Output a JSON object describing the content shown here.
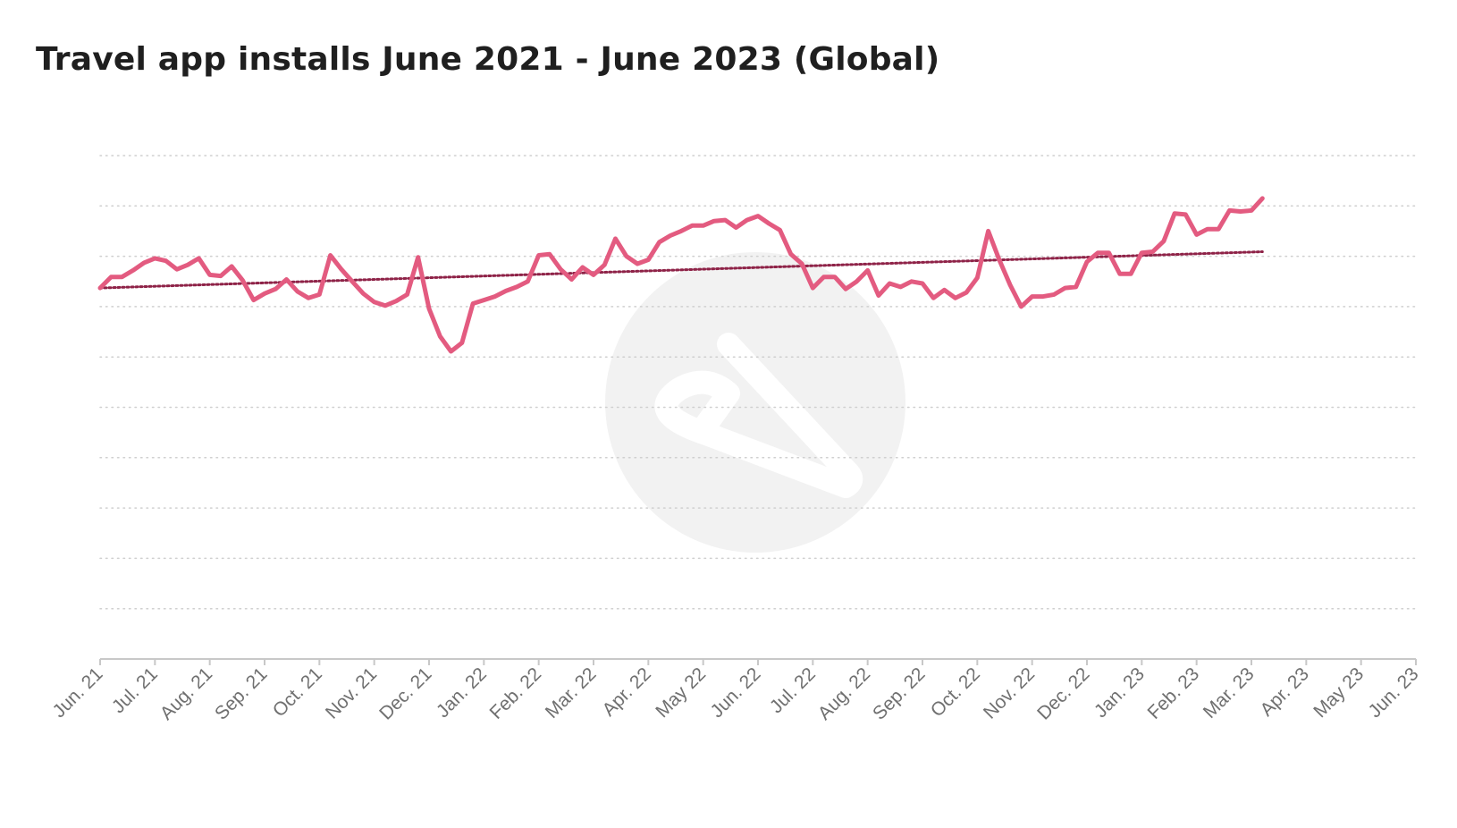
{
  "title": "Travel app installs June 2021 - June 2023 (Global)",
  "colors": {
    "series": "#e35b80",
    "trendline": "#8e2247",
    "grid": "#cfcfcf",
    "axis": "#c8c8c8",
    "tick_label": "#707070",
    "watermark": "#f2f2f2"
  },
  "watermark_icon": "logo-watermark-icon",
  "chart_data": {
    "type": "line",
    "title": "Travel app installs June 2021 - June 2023 (Global)",
    "xlabel": "",
    "ylabel": "",
    "y_tick_labels_shown": false,
    "ylim": [
      0,
      10
    ],
    "grid": true,
    "x_tick_labels": [
      "Jun. 21",
      "Jul. 21",
      "Aug. 21",
      "Sep. 21",
      "Oct. 21",
      "Nov. 21",
      "Dec. 21",
      "Jan. 22",
      "Feb. 22",
      "Mar. 22",
      "Apr. 22",
      "May 22",
      "Jun. 22",
      "Jul. 22",
      "Aug. 22",
      "Sep. 22",
      "Oct. 22",
      "Nov. 22",
      "Dec. 22",
      "Jan. 23",
      "Feb. 23",
      "Mar. 23",
      "Apr. 23",
      "May 23",
      "Jun. 23"
    ],
    "x_unit": "month index (0 = Jun. 21, 24 = Jun. 23)",
    "series": [
      {
        "values": [
          [
            0,
            7.37
          ],
          [
            0.2,
            7.59
          ],
          [
            0.4,
            7.59
          ],
          [
            0.6,
            7.72
          ],
          [
            0.8,
            7.87
          ],
          [
            1.0,
            7.96
          ],
          [
            1.2,
            7.91
          ],
          [
            1.4,
            7.74
          ],
          [
            1.6,
            7.83
          ],
          [
            1.8,
            7.96
          ],
          [
            2.0,
            7.63
          ],
          [
            2.2,
            7.61
          ],
          [
            2.4,
            7.8
          ],
          [
            2.6,
            7.52
          ],
          [
            2.8,
            7.13
          ],
          [
            3.0,
            7.26
          ],
          [
            3.2,
            7.35
          ],
          [
            3.4,
            7.54
          ],
          [
            3.6,
            7.3
          ],
          [
            3.8,
            7.17
          ],
          [
            4.0,
            7.24
          ],
          [
            4.2,
            8.02
          ],
          [
            4.4,
            7.74
          ],
          [
            4.6,
            7.5
          ],
          [
            4.8,
            7.26
          ],
          [
            5.0,
            7.09
          ],
          [
            5.2,
            7.02
          ],
          [
            5.4,
            7.11
          ],
          [
            5.6,
            7.24
          ],
          [
            5.8,
            7.98
          ],
          [
            6.0,
            6.96
          ],
          [
            6.2,
            6.41
          ],
          [
            6.4,
            6.11
          ],
          [
            6.6,
            6.28
          ],
          [
            6.8,
            7.06
          ],
          [
            7.0,
            7.13
          ],
          [
            7.2,
            7.2
          ],
          [
            7.4,
            7.31
          ],
          [
            7.6,
            7.39
          ],
          [
            7.8,
            7.5
          ],
          [
            8.0,
            8.02
          ],
          [
            8.2,
            8.04
          ],
          [
            8.4,
            7.74
          ],
          [
            8.6,
            7.54
          ],
          [
            8.8,
            7.78
          ],
          [
            9.0,
            7.63
          ],
          [
            9.2,
            7.83
          ],
          [
            9.4,
            8.35
          ],
          [
            9.6,
            8.0
          ],
          [
            9.8,
            7.85
          ],
          [
            10.0,
            7.93
          ],
          [
            10.2,
            8.28
          ],
          [
            10.4,
            8.41
          ],
          [
            10.6,
            8.5
          ],
          [
            10.8,
            8.61
          ],
          [
            11.0,
            8.61
          ],
          [
            11.2,
            8.7
          ],
          [
            11.4,
            8.72
          ],
          [
            11.6,
            8.57
          ],
          [
            11.8,
            8.72
          ],
          [
            12.0,
            8.8
          ],
          [
            12.2,
            8.65
          ],
          [
            12.4,
            8.52
          ],
          [
            12.6,
            8.04
          ],
          [
            12.8,
            7.85
          ],
          [
            13.0,
            7.37
          ],
          [
            13.2,
            7.59
          ],
          [
            13.4,
            7.59
          ],
          [
            13.6,
            7.35
          ],
          [
            13.8,
            7.5
          ],
          [
            14.0,
            7.72
          ],
          [
            14.2,
            7.22
          ],
          [
            14.4,
            7.46
          ],
          [
            14.6,
            7.39
          ],
          [
            14.8,
            7.5
          ],
          [
            15.0,
            7.46
          ],
          [
            15.2,
            7.17
          ],
          [
            15.4,
            7.33
          ],
          [
            15.6,
            7.17
          ],
          [
            15.8,
            7.28
          ],
          [
            16.0,
            7.57
          ],
          [
            16.2,
            8.5
          ],
          [
            16.4,
            7.93
          ],
          [
            16.6,
            7.43
          ],
          [
            16.8,
            7.0
          ],
          [
            17.0,
            7.2
          ],
          [
            17.2,
            7.2
          ],
          [
            17.4,
            7.24
          ],
          [
            17.6,
            7.37
          ],
          [
            17.8,
            7.39
          ],
          [
            18.0,
            7.89
          ],
          [
            18.2,
            8.07
          ],
          [
            18.4,
            8.07
          ],
          [
            18.6,
            7.65
          ],
          [
            18.8,
            7.65
          ],
          [
            19.0,
            8.07
          ],
          [
            19.2,
            8.09
          ],
          [
            19.4,
            8.3
          ],
          [
            19.6,
            8.85
          ],
          [
            19.8,
            8.83
          ],
          [
            20.0,
            8.43
          ],
          [
            20.2,
            8.54
          ],
          [
            20.4,
            8.54
          ],
          [
            20.6,
            8.91
          ],
          [
            20.8,
            8.89
          ],
          [
            21.0,
            8.91
          ],
          [
            21.2,
            9.15
          ]
        ]
      }
    ],
    "trendline": {
      "style": "dotted",
      "values": [
        [
          0,
          7.37
        ],
        [
          21.2,
          8.09
        ]
      ]
    }
  }
}
